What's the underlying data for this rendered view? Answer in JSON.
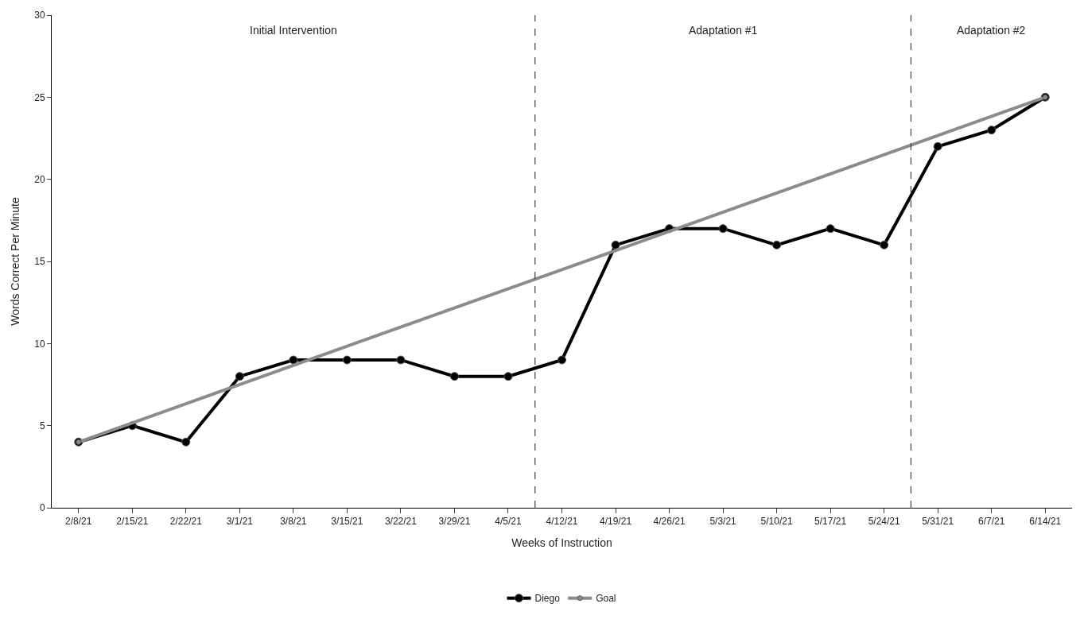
{
  "chart_data": {
    "type": "line",
    "xlabel": "Weeks of Instruction",
    "ylabel": "Words Correct Per Minute",
    "categories": [
      "2/8/21",
      "2/15/21",
      "2/22/21",
      "3/1/21",
      "3/8/21",
      "3/15/21",
      "3/22/21",
      "3/29/21",
      "4/5/21",
      "4/12/21",
      "4/19/21",
      "4/26/21",
      "5/3/21",
      "5/10/21",
      "5/17/21",
      "5/24/21",
      "5/31/21",
      "6/7/21",
      "6/14/21"
    ],
    "series": [
      {
        "name": "Diego",
        "color": "#000000",
        "values": [
          4,
          5,
          4,
          8,
          9,
          9,
          9,
          8,
          8,
          9,
          16,
          17,
          17,
          16,
          17,
          16,
          22,
          23,
          25
        ]
      },
      {
        "name": "Goal",
        "color": "#8c8c8c",
        "x": [
          "2/8/21",
          "6/14/21"
        ],
        "values": [
          4,
          25
        ]
      }
    ],
    "ylim": [
      0,
      30
    ],
    "yticks": [
      0,
      5,
      10,
      15,
      20,
      25,
      30
    ],
    "annotations": [
      "Initial Intervention",
      "Adaptation #1",
      "Adaptation #2"
    ],
    "grid": false,
    "legend": "bottom",
    "marker": "circle",
    "line_style": "solid"
  }
}
